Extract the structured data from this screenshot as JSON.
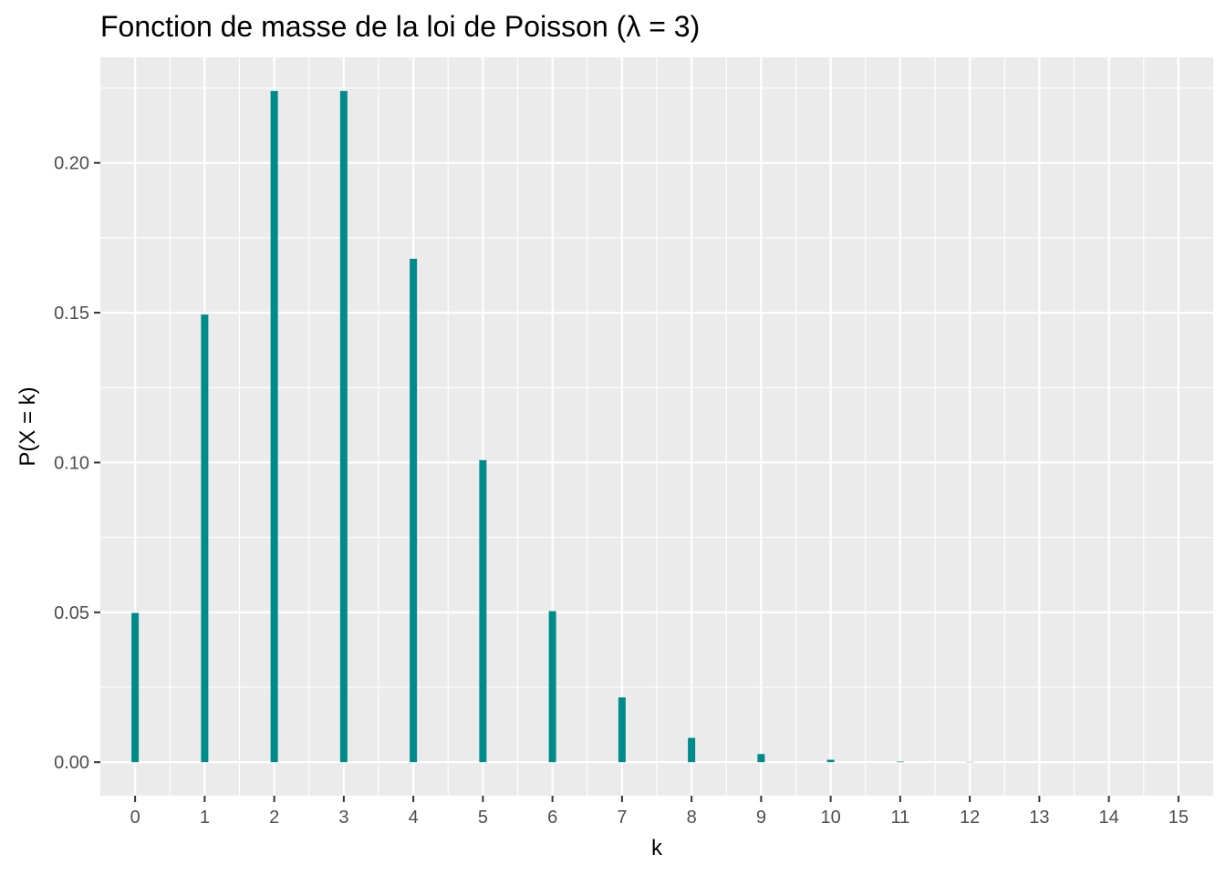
{
  "chart_data": {
    "type": "bar",
    "title": "Fonction de masse de la loi de Poisson (λ = 3)",
    "xlabel": "k",
    "ylabel": "P(X = k)",
    "x": [
      0,
      1,
      2,
      3,
      4,
      5,
      6,
      7,
      8,
      9,
      10,
      11,
      12,
      13,
      14,
      15
    ],
    "values": [
      0.0498,
      0.1494,
      0.224,
      0.224,
      0.168,
      0.1008,
      0.0504,
      0.0216,
      0.0081,
      0.0027,
      0.0008,
      0.0002,
      0.0001,
      0.0,
      0.0,
      0.0
    ],
    "xlim": [
      -0.5,
      15.5
    ],
    "ylim": [
      -0.0112,
      0.2352
    ],
    "yticks": [
      "0.00",
      "0.05",
      "0.10",
      "0.15",
      "0.20"
    ],
    "ytick_values": [
      0,
      0.05,
      0.1,
      0.15,
      0.2
    ],
    "grid": true,
    "legend": "none",
    "bar_color": "#008B8B",
    "panel_color": "#EBEBEB",
    "grid_color": "#FFFFFF"
  }
}
